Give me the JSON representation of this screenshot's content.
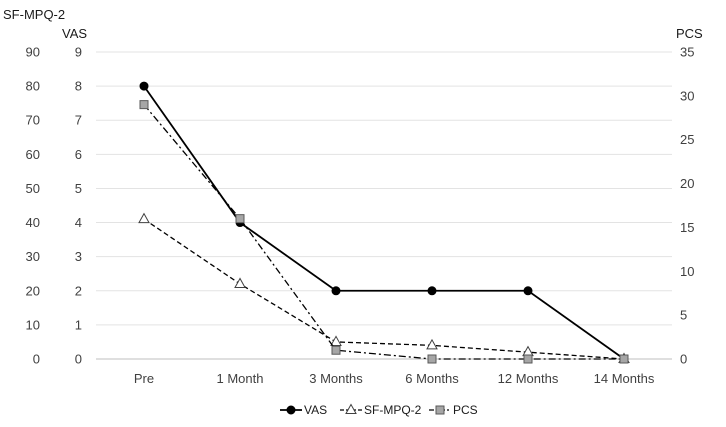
{
  "chart_data": {
    "type": "line",
    "categories": [
      "Pre",
      "1 Month",
      "3 Months",
      "6 Months",
      "12 Months",
      "14 Months"
    ],
    "axes": {
      "left_outer": {
        "label": "SF-MPQ-2",
        "range": [
          0,
          90
        ],
        "ticks": [
          0,
          10,
          20,
          30,
          40,
          50,
          60,
          70,
          80,
          90
        ]
      },
      "left_inner": {
        "label": "VAS",
        "range": [
          0,
          9
        ],
        "ticks": [
          0,
          1,
          2,
          3,
          4,
          5,
          6,
          7,
          8,
          9
        ]
      },
      "right": {
        "label": "PCS",
        "range": [
          0,
          35
        ],
        "ticks": [
          0,
          5,
          10,
          15,
          20,
          25,
          30,
          35
        ]
      }
    },
    "series": [
      {
        "name": "VAS",
        "axis": "left_inner",
        "values": [
          8,
          4,
          2,
          2,
          2,
          0
        ],
        "color": "#000000",
        "marker": "circle",
        "line": "solid"
      },
      {
        "name": "SF-MPQ-2",
        "axis": "left_outer",
        "values": [
          41,
          22,
          5,
          4,
          2,
          0
        ],
        "color": "#000000",
        "marker": "triangle-open",
        "line": "dashed"
      },
      {
        "name": "PCS",
        "axis": "right",
        "values": [
          29,
          16,
          1,
          0,
          0,
          0
        ],
        "color": "#7f7f7f",
        "marker": "square",
        "line": "dash-dot"
      }
    ],
    "grid": true,
    "legend_position": "bottom"
  }
}
